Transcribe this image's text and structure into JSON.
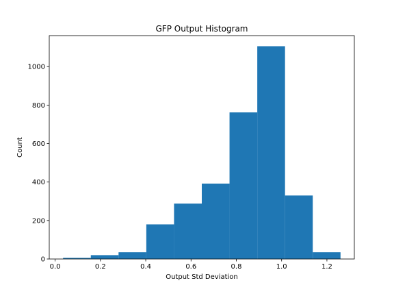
{
  "chart_data": {
    "type": "bar",
    "subtype": "histogram",
    "title": "GFP Output Histogram",
    "xlabel": "Output Std Deviation",
    "ylabel": "Count",
    "bin_edges": [
      0.035,
      0.1575,
      0.28,
      0.4025,
      0.525,
      0.6475,
      0.77,
      0.8925,
      1.015,
      1.1375,
      1.26
    ],
    "values": [
      6,
      20,
      35,
      180,
      288,
      392,
      762,
      1106,
      330,
      35
    ],
    "xlim": [
      -0.026,
      1.321
    ],
    "ylim": [
      0,
      1161
    ],
    "xticks": [
      0.0,
      0.2,
      0.4,
      0.6,
      0.8,
      1.0,
      1.2
    ],
    "xtick_labels": [
      "0.0",
      "0.2",
      "0.4",
      "0.6",
      "0.8",
      "1.0",
      "1.2"
    ],
    "yticks": [
      0,
      200,
      400,
      600,
      800,
      1000
    ],
    "ytick_labels": [
      "0",
      "200",
      "400",
      "600",
      "800",
      "1000"
    ],
    "bar_color": "#1f77b4",
    "grid": false,
    "legend": "none"
  }
}
